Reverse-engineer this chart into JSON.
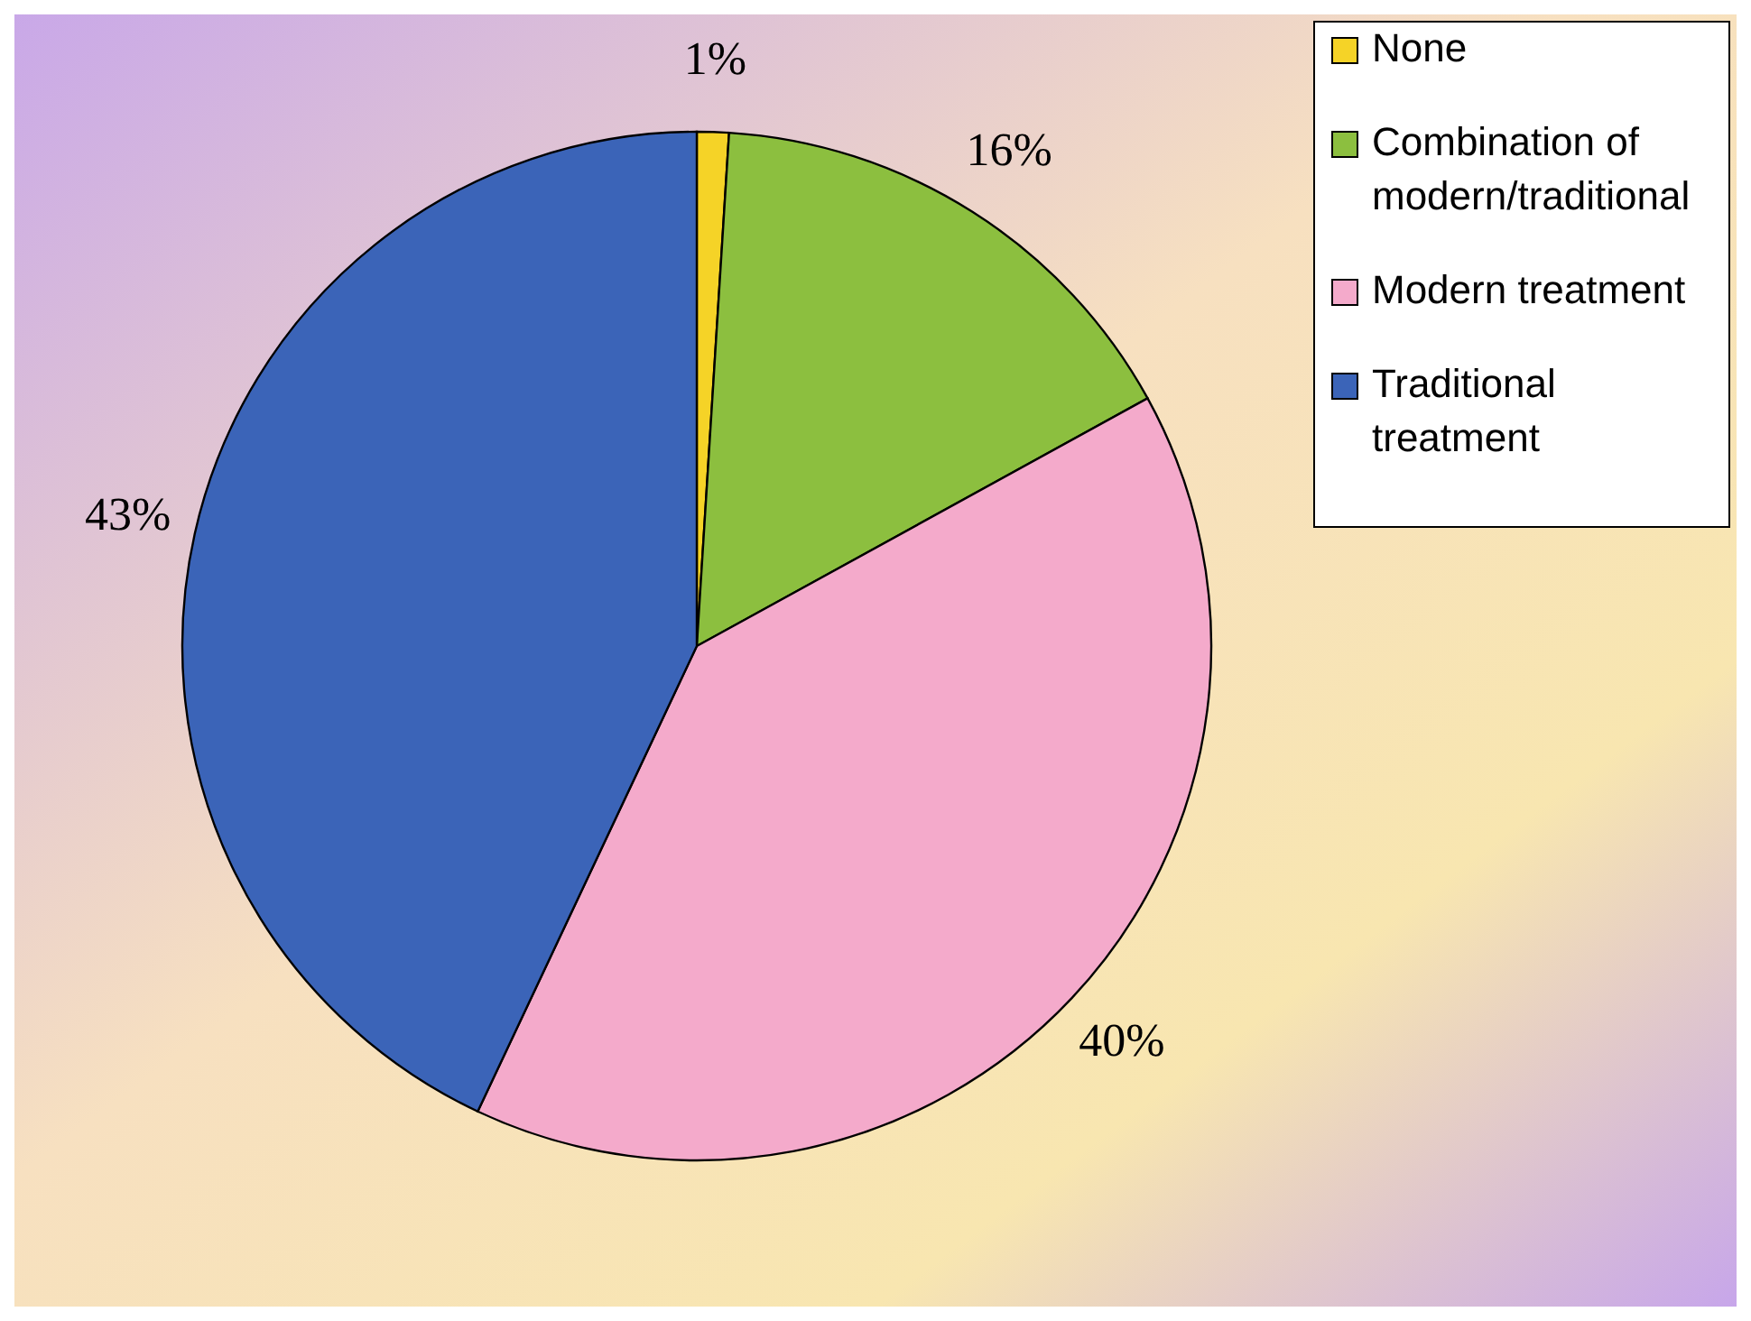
{
  "chart_data": {
    "type": "pie",
    "categories": [
      "None",
      "Combination of modern/traditional",
      "Modern treatment",
      "Traditional treatment"
    ],
    "values": [
      1,
      16,
      40,
      43
    ],
    "colors": [
      "#f5d327",
      "#8cbf3f",
      "#f4aacb",
      "#3b64b8"
    ],
    "value_labels": [
      "1%",
      "16%",
      "40%",
      "43%"
    ],
    "legend": "top right"
  }
}
